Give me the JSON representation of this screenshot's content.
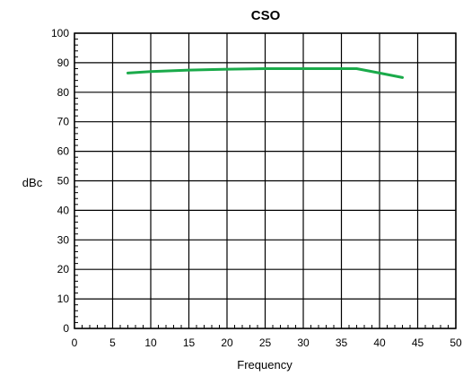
{
  "chart_data": {
    "type": "line",
    "title": "CSO",
    "xlabel": "Frequency",
    "ylabel": "dBc",
    "xlim": [
      0,
      50
    ],
    "ylim": [
      0,
      100
    ],
    "x_ticks": [
      0,
      5,
      10,
      15,
      20,
      25,
      30,
      35,
      40,
      45,
      50
    ],
    "y_ticks": [
      0,
      10,
      20,
      30,
      40,
      50,
      60,
      70,
      80,
      90,
      100
    ],
    "grid": true,
    "series": [
      {
        "color": "#1aaa4a",
        "x": [
          7,
          10,
          15,
          20,
          25,
          30,
          33,
          37,
          40,
          43
        ],
        "y": [
          86.5,
          87.0,
          87.5,
          87.8,
          88.0,
          88.0,
          88.0,
          88.0,
          86.5,
          85.0
        ]
      }
    ]
  }
}
